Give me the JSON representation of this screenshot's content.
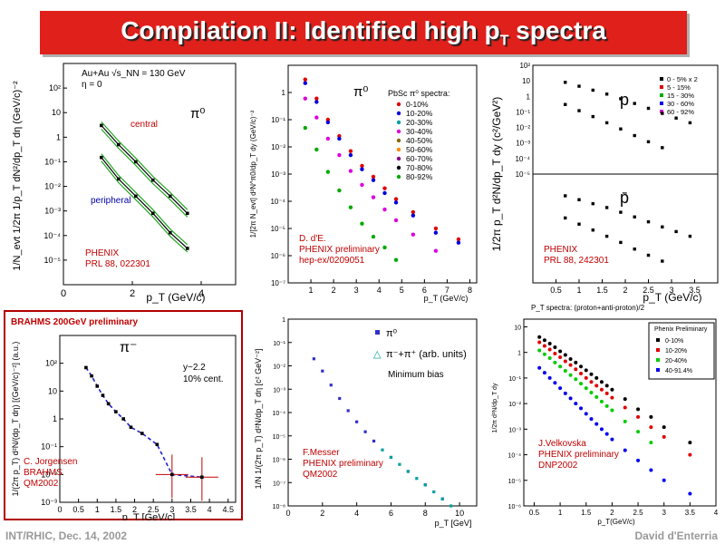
{
  "slide": {
    "title_main": "Compilation II: Identified high p",
    "title_sub": "T",
    "title_end": " spectra",
    "footer_left": "INT/RHIC, Dec. 14, 2002",
    "footer_right": "David d'Enterria"
  },
  "colors": {
    "title_bg": "#e0201b",
    "annotation": "#c00000",
    "fit": "#1fa51f"
  },
  "chart_data": [
    {
      "type": "scatter",
      "ylabel": "1/N_evt 1/2π 1/p_T dN²/dp_T dη (GeV/c)⁻²",
      "xlabel": "p_T (GeV/c)",
      "header_lines": [
        "Au+Au √s_NN = 130 GeV",
        "η = 0"
      ],
      "particle": "π⁰",
      "log_y": true,
      "xlim": [
        0,
        5
      ],
      "ylim": [
        1e-06,
        1000
      ],
      "x_ticks": [
        "0",
        "2",
        "4"
      ],
      "y_ticks": [
        "10²",
        "10",
        "1",
        "10⁻¹",
        "10⁻²",
        "10⁻³",
        "10⁻⁴",
        "10⁻⁵"
      ],
      "labels": [
        "central",
        "peripheral"
      ],
      "annotation": [
        "PHENIX",
        "PRL 88, 022301"
      ],
      "series": [
        {
          "name": "central",
          "x": [
            1.1,
            1.6,
            2.1,
            2.6,
            3.1,
            3.6
          ],
          "y": [
            3,
            0.5,
            0.1,
            0.018,
            0.004,
            0.0008
          ]
        },
        {
          "name": "peripheral",
          "x": [
            1.1,
            1.6,
            2.1,
            2.6,
            3.1,
            3.6
          ],
          "y": [
            0.15,
            0.02,
            0.004,
            0.0008,
            0.00013,
            3e-05
          ]
        }
      ]
    },
    {
      "type": "scatter",
      "ylabel": "1/[2π N_evt] d²N^π0/dp_T dy (GeV/c)⁻²",
      "xlabel": "p_T (GeV/c)",
      "particle": "π⁰",
      "legend_title": "PbSc π⁰ spectra:",
      "log_y": true,
      "xlim": [
        0,
        8.3
      ],
      "ylim": [
        1e-07,
        10
      ],
      "x_ticks": [
        "1",
        "2",
        "3",
        "4",
        "5",
        "6",
        "7",
        "8"
      ],
      "y_ticks": [
        "1",
        "10⁻¹",
        "10⁻²",
        "10⁻³",
        "10⁻⁴",
        "10⁻⁵",
        "10⁻⁶",
        "10⁻⁷"
      ],
      "annotation": [
        "D. d'E.",
        "PHENIX preliminary",
        "hep-ex/0209051"
      ],
      "series": [
        {
          "name": "0-10%",
          "color": "#e00000",
          "x": [
            0.75,
            1.25,
            1.75,
            2.25,
            2.75,
            3.25,
            3.75,
            4.25,
            4.75,
            5.5,
            6.5,
            7.5
          ],
          "y": [
            3,
            0.6,
            0.1,
            0.025,
            0.007,
            0.002,
            0.0008,
            0.0003,
            0.00012,
            4e-05,
            1e-05,
            4e-06
          ]
        },
        {
          "name": "10-20%",
          "color": "#0000dd",
          "x": [
            0.75,
            1.25,
            1.75,
            2.25,
            2.75,
            3.25,
            3.75,
            4.25,
            4.75,
            5.5,
            6.5,
            7.5
          ],
          "y": [
            2.2,
            0.45,
            0.08,
            0.02,
            0.005,
            0.0015,
            0.0006,
            0.0002,
            9e-05,
            3e-05,
            7e-06,
            3e-06
          ]
        },
        {
          "name": "40-50%",
          "color": "#dd00dd",
          "x": [
            0.75,
            1.25,
            1.75,
            2.25,
            2.75,
            3.25,
            3.75,
            4.25,
            4.75,
            5.5,
            6.5
          ],
          "y": [
            0.6,
            0.12,
            0.02,
            0.005,
            0.0013,
            0.0004,
            0.00014,
            5e-05,
            2e-05,
            6e-06,
            1.5e-06
          ]
        },
        {
          "name": "80-92%",
          "color": "#00aa00",
          "x": [
            0.75,
            1.25,
            1.75,
            2.25,
            2.75,
            3.25,
            3.75,
            4.25,
            4.75
          ],
          "y": [
            0.05,
            0.008,
            0.0012,
            0.00025,
            6e-05,
            1.5e-05,
            5e-06,
            2e-06,
            7e-07
          ]
        }
      ],
      "legend": [
        "0-10%",
        "10-20%",
        "20-30%",
        "30-40%",
        "40-50%",
        "50-60%",
        "60-70%",
        "70-80%",
        "80-92%"
      ]
    },
    {
      "type": "scatter",
      "ylabel": "1/2π p_T d²N/dp_T dy (c²/GeV²)",
      "xlabel": "p_T (GeV/c)",
      "particles": [
        "p",
        "p̄"
      ],
      "log_y": true,
      "xlim": [
        0,
        4
      ],
      "ylim": [
        1e-05,
        100
      ],
      "x_ticks": [
        "0.5",
        "1",
        "1.5",
        "2",
        "2.5",
        "3",
        "3.5"
      ],
      "y_ticks": [
        "10²",
        "10",
        "1",
        "10⁻¹",
        "10⁻²",
        "10⁻³",
        "10⁻⁴",
        "10⁻⁵"
      ],
      "legend": [
        "0 - 5% x 2",
        "5 - 15%",
        "15 - 30%",
        "30 - 60%",
        "60 - 92%"
      ],
      "annotation": [
        "PHENIX",
        "PRL 88, 242301"
      ],
      "series": [
        {
          "name": "0 - 5% x 2",
          "color": "#000000",
          "x": [
            0.7,
            1.0,
            1.3,
            1.6,
            1.9,
            2.2,
            2.5,
            2.8,
            3.1,
            3.4
          ],
          "y": [
            8,
            4.5,
            2.5,
            1.4,
            0.7,
            0.35,
            0.17,
            0.08,
            0.04,
            0.02
          ]
        },
        {
          "name": "60 - 92%",
          "color": "#000000",
          "x": [
            0.7,
            1.0,
            1.3,
            1.6,
            1.9,
            2.2,
            2.5,
            2.8
          ],
          "y": [
            0.3,
            0.12,
            0.05,
            0.02,
            0.008,
            0.003,
            0.0012,
            0.0005
          ]
        }
      ]
    },
    {
      "type": "line",
      "ylabel": "1/(2π p_T) d²N/(dp_T dη) [(GeV/c)⁻²] (a.u.)",
      "xlabel": "p_T [GeV/c]",
      "header": "BRAHMS 200GeV preliminary",
      "particle": "π⁻",
      "notes": [
        "y~2.2",
        "10% cent."
      ],
      "log_y": true,
      "xlim": [
        0,
        4.7
      ],
      "ylim": [
        0.001,
        1000
      ],
      "x_ticks": [
        "0",
        "0.5",
        "1",
        "1.5",
        "2",
        "2.5",
        "3",
        "3.5",
        "4",
        "4.5"
      ],
      "y_ticks": [
        "10²",
        "10",
        "1",
        "10⁻¹",
        "10⁻²",
        "10⁻³"
      ],
      "annotation": [
        "C. Jorgensen",
        "BRAHMS",
        "QM2002"
      ],
      "series": [
        {
          "name": "data",
          "x": [
            0.7,
            0.85,
            1.0,
            1.15,
            1.3,
            1.5,
            1.7,
            1.9,
            2.2,
            2.6,
            3.0,
            3.8
          ],
          "y": [
            70,
            35,
            15,
            7,
            3.5,
            1.8,
            1.0,
            0.5,
            0.3,
            0.12,
            0.01,
            0.008
          ]
        }
      ]
    },
    {
      "type": "scatter",
      "ylabel": "1/N 1/(2π p_T) d²N/dp_T dη [c² GeV⁻²]",
      "xlabel": "p_T [GeV]",
      "legend": [
        "π⁰",
        "π⁻+π⁺ (arb. units)"
      ],
      "note": "Minimum bias",
      "log_y": true,
      "xlim": [
        0,
        11
      ],
      "ylim": [
        1e-08,
        1
      ],
      "x_ticks": [
        "0",
        "2",
        "4",
        "6",
        "8",
        "10"
      ],
      "y_ticks": [
        "1",
        "10⁻¹",
        "10⁻²",
        "10⁻³",
        "10⁻⁴",
        "10⁻⁵",
        "10⁻⁶",
        "10⁻⁷",
        "10⁻⁸"
      ],
      "annotation": [
        "F.Messer",
        "PHENIX preliminary",
        "QM2002"
      ],
      "series": [
        {
          "name": "π⁰",
          "color": "#3030cc",
          "x": [
            1.5,
            2.0,
            2.5,
            3.0,
            3.5,
            4.0,
            4.5,
            5.0,
            6.0,
            7.0,
            8.0,
            9.0
          ],
          "y": [
            0.02,
            0.006,
            0.0015,
            0.0004,
            0.00012,
            4e-05,
            1.5e-05,
            6e-06,
            1.2e-06,
            3e-07,
            8e-08,
            2e-08
          ]
        },
        {
          "name": "π⁻+π⁺ (arb. units)",
          "color": "#00a0a0",
          "x": [
            5.5,
            6.0,
            6.5,
            7.0,
            7.5,
            8.0,
            8.5,
            9.0,
            9.5
          ],
          "y": [
            2.5e-06,
            1.2e-06,
            6e-07,
            3e-07,
            1.5e-07,
            8e-08,
            4e-08,
            2e-08,
            1e-08
          ]
        }
      ]
    },
    {
      "type": "scatter",
      "title": "P_T spectra: (proton+anti-proton)/2",
      "ylabel": "1/2π d²N/dp_T dy",
      "xlabel": "p_T(GeV/c)",
      "legend_title": "Phenix Preliminary",
      "legend": [
        "0-10%",
        "10-20%",
        "20-40%",
        "40-91.4%"
      ],
      "log_y": true,
      "xlim": [
        0.3,
        4.0
      ],
      "ylim": [
        1e-06,
        20
      ],
      "x_ticks": [
        "0.5",
        "1",
        "1.5",
        "2",
        "2.5",
        "3",
        "3.5",
        "4"
      ],
      "y_ticks": [
        "10",
        "1",
        "10⁻¹",
        "10⁻²",
        "10⁻³",
        "10⁻⁴",
        "10⁻⁵",
        "10⁻⁶"
      ],
      "annotation": [
        "J.Velkovska",
        "PHENIX preliminary",
        "DNP2002"
      ],
      "series": [
        {
          "name": "0-10%",
          "color": "#000000",
          "x": [
            0.6,
            0.7,
            0.8,
            0.9,
            1.0,
            1.1,
            1.2,
            1.3,
            1.4,
            1.5,
            1.6,
            1.7,
            1.8,
            1.9,
            2.0,
            2.25,
            2.5,
            2.75,
            3.0,
            3.5
          ],
          "y": [
            4,
            3,
            2.2,
            1.6,
            1.1,
            0.8,
            0.55,
            0.4,
            0.28,
            0.2,
            0.14,
            0.1,
            0.07,
            0.05,
            0.035,
            0.015,
            0.006,
            0.003,
            0.0012,
            0.0003
          ]
        },
        {
          "name": "10-20%",
          "color": "#e00000",
          "x": [
            0.6,
            0.7,
            0.8,
            0.9,
            1.0,
            1.1,
            1.2,
            1.3,
            1.4,
            1.5,
            1.6,
            1.7,
            1.8,
            1.9,
            2.0,
            2.25,
            2.5,
            2.75,
            3.0,
            3.5
          ],
          "y": [
            2.5,
            1.8,
            1.3,
            0.9,
            0.65,
            0.45,
            0.32,
            0.22,
            0.15,
            0.1,
            0.07,
            0.05,
            0.035,
            0.025,
            0.017,
            0.007,
            0.003,
            0.0012,
            0.0005,
            0.0001
          ]
        },
        {
          "name": "20-40%",
          "color": "#00cc00",
          "x": [
            0.6,
            0.7,
            0.8,
            0.9,
            1.0,
            1.1,
            1.2,
            1.3,
            1.4,
            1.5,
            1.6,
            1.7,
            1.8,
            1.9,
            2.0,
            2.25,
            2.5,
            2.75
          ],
          "y": [
            1.2,
            0.85,
            0.6,
            0.4,
            0.28,
            0.19,
            0.13,
            0.09,
            0.06,
            0.04,
            0.027,
            0.018,
            0.012,
            0.008,
            0.0055,
            0.002,
            0.0008,
            0.0003
          ]
        },
        {
          "name": "40-91.4%",
          "color": "#0000ee",
          "x": [
            0.6,
            0.7,
            0.8,
            0.9,
            1.0,
            1.1,
            1.2,
            1.3,
            1.4,
            1.5,
            1.6,
            1.7,
            1.8,
            1.9,
            2.0,
            2.25,
            2.5,
            2.75,
            3.0,
            3.5
          ],
          "y": [
            0.25,
            0.16,
            0.1,
            0.065,
            0.04,
            0.025,
            0.016,
            0.01,
            0.0065,
            0.004,
            0.0025,
            0.0016,
            0.001,
            0.00065,
            0.0004,
            0.00015,
            6e-05,
            2.5e-05,
            1e-05,
            3e-06
          ]
        }
      ]
    }
  ]
}
